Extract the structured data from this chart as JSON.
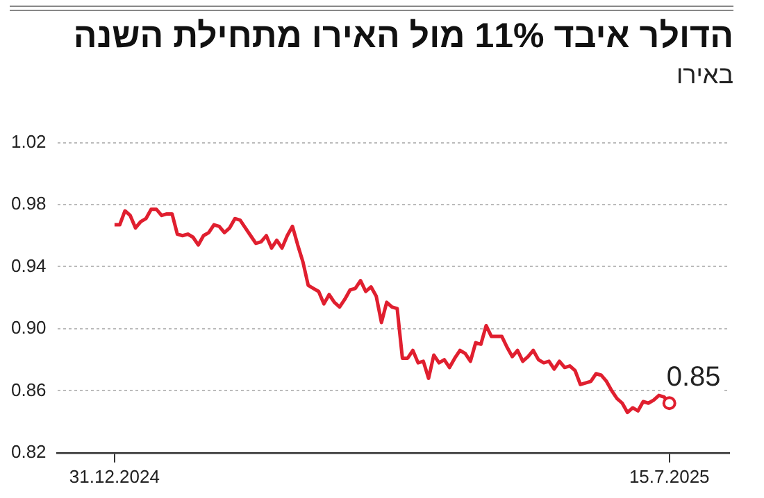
{
  "chart_data": {
    "type": "line",
    "title": "הדולר איבד 11% מול האירו מתחילת השנה",
    "subtitle": "באירו",
    "categories": [
      "31.12.2024",
      null,
      null,
      null,
      null,
      null,
      null,
      null,
      null,
      null,
      null,
      null,
      null,
      null,
      null,
      null,
      null,
      null,
      null,
      null,
      null,
      null,
      null,
      null,
      null,
      null,
      null,
      null,
      null,
      null,
      null,
      null,
      null,
      null,
      null,
      null,
      null,
      null,
      null,
      null,
      null,
      null,
      null,
      null,
      null,
      null,
      null,
      null,
      null,
      null,
      null,
      null,
      null,
      null,
      null,
      null,
      null,
      null,
      null,
      null,
      null,
      null,
      null,
      null,
      null,
      null,
      null,
      null,
      null,
      null,
      null,
      null,
      null,
      null,
      null,
      null,
      null,
      null,
      null,
      null,
      null,
      null,
      null,
      null,
      null,
      null,
      null,
      null,
      null,
      null,
      null,
      null,
      null,
      null,
      null,
      null,
      null,
      null,
      null,
      null,
      null,
      null,
      null,
      null,
      null,
      null,
      "15.7.2025"
    ],
    "series": [
      {
        "color": "#e01f2f",
        "values": [
          0.967,
          0.967,
          0.976,
          0.973,
          0.965,
          0.969,
          0.971,
          0.977,
          0.977,
          0.973,
          0.974,
          0.974,
          0.961,
          0.96,
          0.961,
          0.959,
          0.954,
          0.96,
          0.962,
          0.967,
          0.966,
          0.962,
          0.965,
          0.971,
          0.97,
          0.965,
          0.96,
          0.955,
          0.956,
          0.96,
          0.952,
          0.957,
          0.952,
          0.96,
          0.966,
          0.954,
          0.943,
          0.928,
          0.926,
          0.924,
          0.916,
          0.922,
          0.917,
          0.914,
          0.919,
          0.925,
          0.926,
          0.931,
          0.924,
          0.927,
          0.921,
          0.904,
          0.917,
          0.914,
          0.913,
          0.881,
          0.881,
          0.886,
          0.878,
          0.879,
          0.868,
          0.883,
          0.878,
          0.88,
          0.875,
          0.881,
          0.886,
          0.884,
          0.879,
          0.891,
          0.89,
          0.902,
          0.895,
          0.895,
          0.895,
          0.888,
          0.882,
          0.886,
          0.879,
          0.882,
          0.886,
          0.88,
          0.878,
          0.879,
          0.874,
          0.879,
          0.875,
          0.876,
          0.873,
          0.864,
          0.865,
          0.866,
          0.871,
          0.87,
          0.866,
          0.86,
          0.855,
          0.852,
          0.846,
          0.849,
          0.847,
          0.853,
          0.852,
          0.854,
          0.857,
          0.856,
          0.852
        ],
        "value_labels": [
          null,
          null,
          null,
          null,
          null,
          null,
          null,
          null,
          null,
          null,
          null,
          null,
          null,
          null,
          null,
          null,
          null,
          null,
          null,
          null,
          null,
          null,
          null,
          null,
          null,
          null,
          null,
          null,
          null,
          null,
          null,
          null,
          null,
          null,
          null,
          null,
          null,
          null,
          null,
          null,
          null,
          null,
          null,
          null,
          null,
          null,
          null,
          null,
          null,
          null,
          null,
          null,
          null,
          null,
          null,
          null,
          null,
          null,
          null,
          null,
          null,
          null,
          null,
          null,
          null,
          null,
          null,
          null,
          null,
          null,
          null,
          null,
          null,
          null,
          null,
          null,
          null,
          null,
          null,
          null,
          null,
          null,
          null,
          null,
          null,
          null,
          null,
          null,
          null,
          null,
          null,
          null,
          null,
          null,
          null,
          null,
          null,
          null,
          null,
          null,
          null,
          null,
          null,
          null,
          null,
          null,
          "0.85"
        ]
      }
    ],
    "ylim": [
      0.82,
      1.02
    ],
    "yticks": [
      {
        "value": 0.82,
        "label": "0.82"
      },
      {
        "value": 0.86,
        "label": "0.86"
      },
      {
        "value": 0.9,
        "label": "0.90"
      },
      {
        "value": 0.94,
        "label": "0.94"
      },
      {
        "value": 0.98,
        "label": "0.98"
      },
      {
        "value": 1.02,
        "label": "1.02"
      }
    ],
    "grid": "y",
    "legend": false
  }
}
